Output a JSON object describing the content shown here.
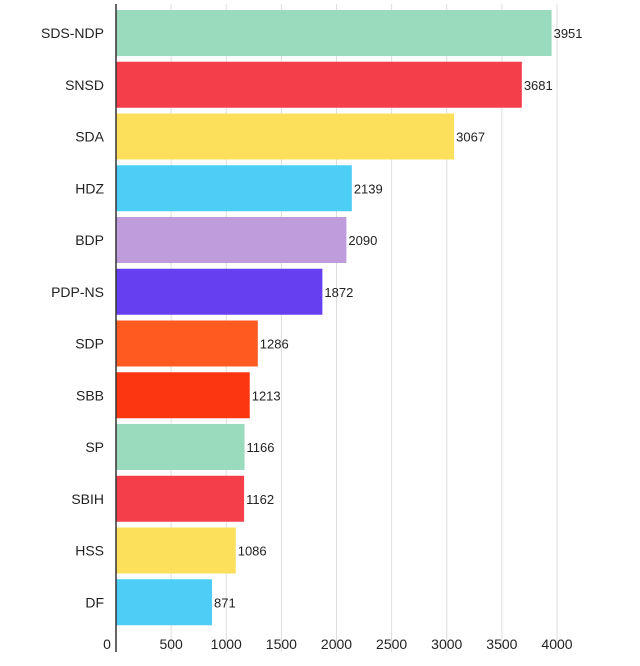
{
  "chart_data": {
    "type": "bar",
    "orientation": "horizontal",
    "categories": [
      "SDS-NDP",
      "SNSD",
      "SDA",
      "HDZ",
      "BDP",
      "PDP-NS",
      "SDP",
      "SBB",
      "SP",
      "SBIH",
      "HSS",
      "DF"
    ],
    "values": [
      3951,
      3681,
      3067,
      2139,
      2090,
      1872,
      1286,
      1213,
      1166,
      1162,
      1086,
      871
    ],
    "bar_colors": [
      "#9adbbd",
      "#f43f4a",
      "#fce05c",
      "#4dcef6",
      "#bf9cdc",
      "#653ff0",
      "#ff5a20",
      "#fb3611",
      "#9adbbd",
      "#f43f4a",
      "#fce05c",
      "#4dcef6"
    ],
    "xticks": [
      0,
      500,
      1000,
      1500,
      2000,
      2500,
      3000,
      3500,
      4000
    ],
    "xlim": [
      0,
      4000
    ],
    "grid": true,
    "legend": "none",
    "title": "",
    "xlabel": "",
    "ylabel": ""
  }
}
